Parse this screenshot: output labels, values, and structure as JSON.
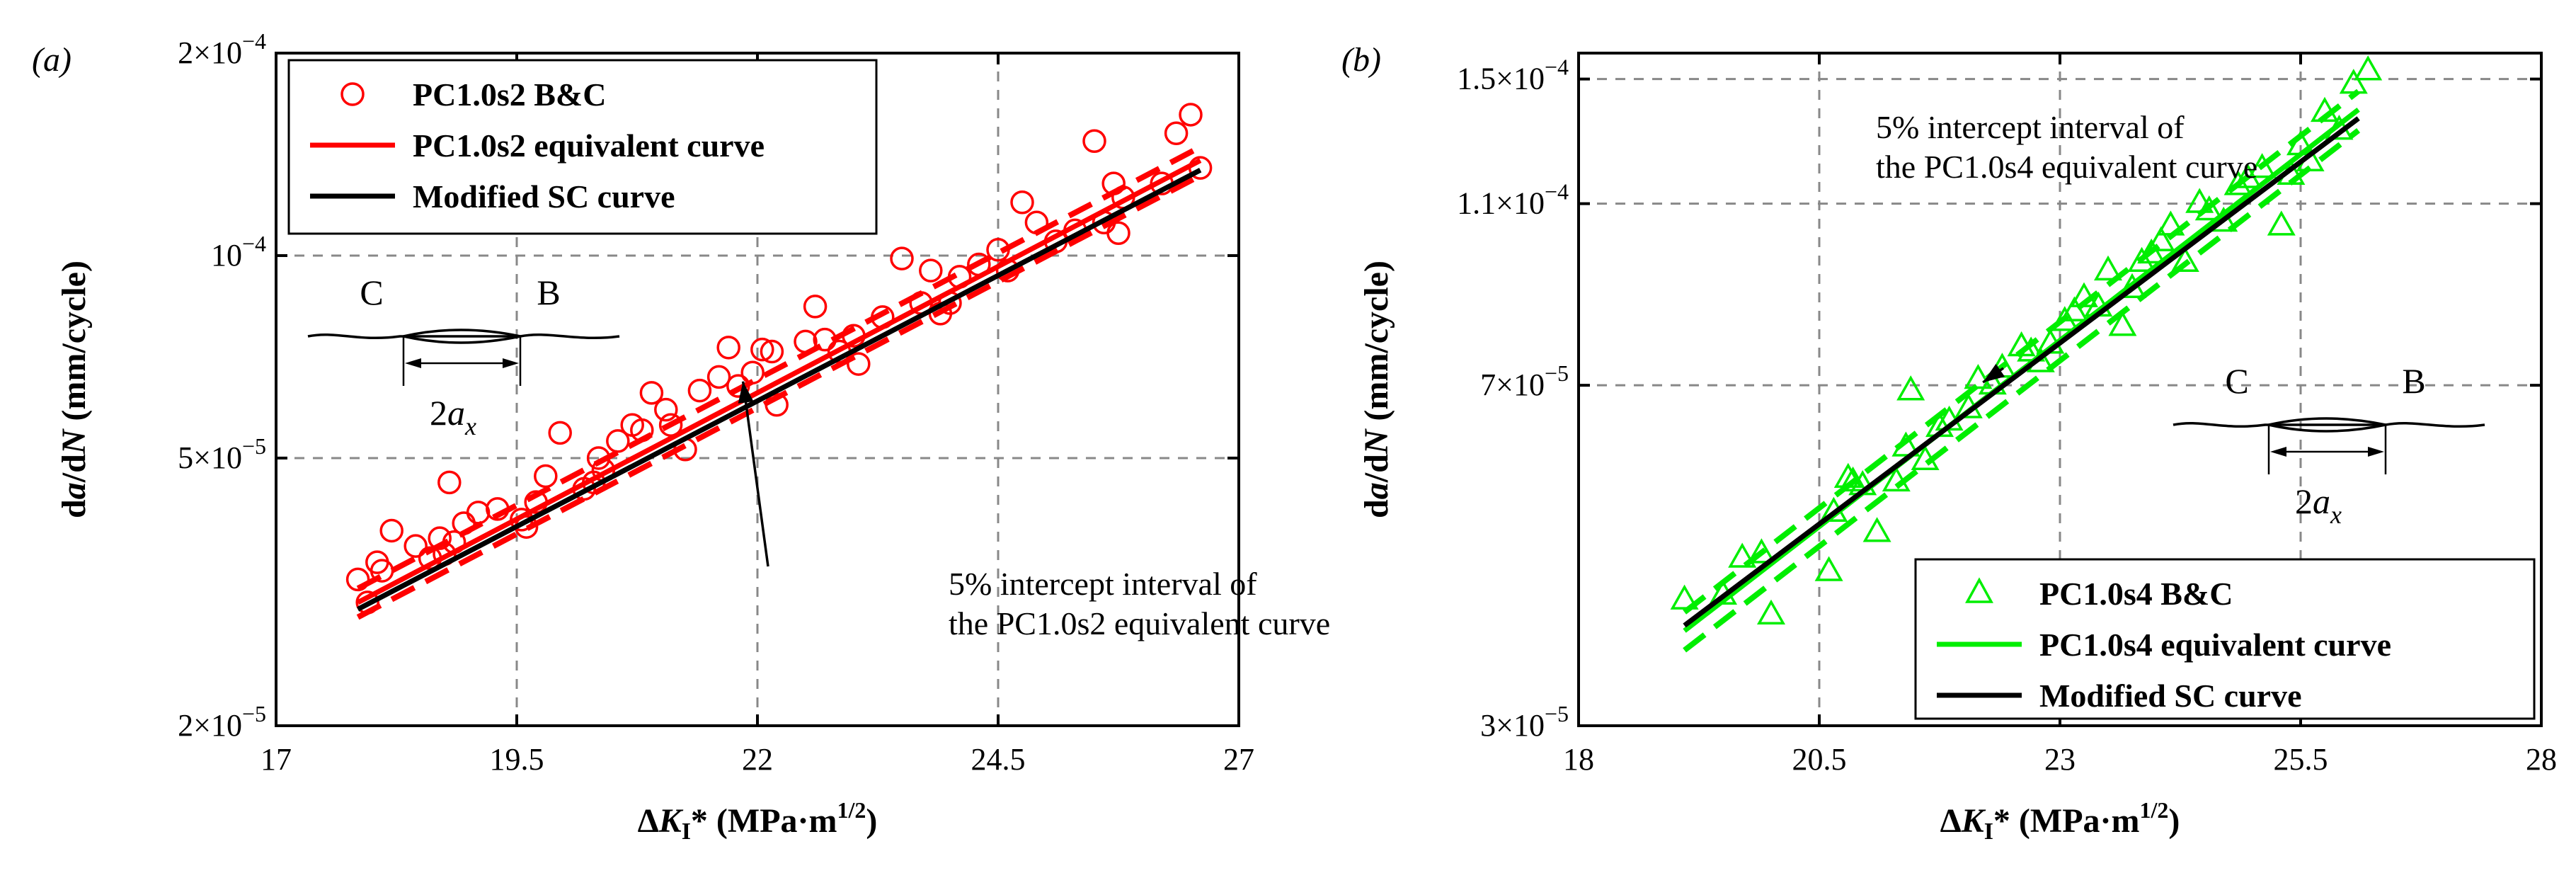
{
  "chart_data": [
    {
      "panel_label": "(a)",
      "type": "scatter",
      "xlabel": "ΔKI* (MPa·m1/2)",
      "ylabel": "da/dN (mm/cycle)",
      "xscale": "linear",
      "yscale": "log",
      "xlim": [
        17,
        27
      ],
      "ylim": [
        2e-05,
        0.0002
      ],
      "xticks": [
        17,
        19.5,
        22,
        24.5,
        27
      ],
      "xtick_labels": [
        "17",
        "19.5",
        "22",
        "24.5",
        "27"
      ],
      "yticks": [
        2e-05,
        5e-05,
        0.0001,
        0.0002
      ],
      "ytick_labels": [
        [
          "2×10",
          "−5"
        ],
        [
          "5×10",
          "−5"
        ],
        [
          "10",
          "−4"
        ],
        [
          "2×10",
          "−4"
        ]
      ],
      "grid": "dashed",
      "legend_position": "top-left",
      "legend": [
        {
          "label": "PC1.0s2 B&C",
          "kind": "marker-circle",
          "color": "#ff0000"
        },
        {
          "label": "PC1.0s2 equivalent curve",
          "kind": "line",
          "color": "#ff0000"
        },
        {
          "label": "Modified SC curve",
          "kind": "line",
          "color": "#000000"
        }
      ],
      "annotation": {
        "lines": [
          "5% intercept interval of",
          "the PC1.0s2 equivalent curve"
        ],
        "arrow_target": [
          21.85,
          6.5e-05
        ]
      },
      "inset": {
        "left": "C",
        "right": "B",
        "width_base": "2a",
        "width_sub": "x",
        "position": "middle-left"
      },
      "series": [
        {
          "name": "PC1.0s2 B&C",
          "kind": "scatter",
          "marker": "circle",
          "color": "#ff0000",
          "x": [
            17.85,
            17.95,
            18.05,
            18.1,
            18.2,
            18.45,
            18.6,
            18.7,
            18.75,
            18.8,
            18.85,
            18.95,
            19.1,
            19.3,
            19.55,
            19.6,
            19.7,
            19.8,
            19.95,
            20.2,
            20.3,
            20.35,
            20.4,
            20.55,
            20.7,
            20.8,
            20.9,
            21.05,
            21.1,
            21.25,
            21.4,
            21.6,
            21.7,
            21.8,
            21.95,
            22.05,
            22.15,
            22.2,
            22.5,
            22.6,
            22.7,
            22.85,
            23.0,
            23.05,
            23.3,
            23.5,
            23.7,
            23.8,
            23.9,
            24.0,
            24.1,
            24.3,
            24.5,
            24.6,
            24.75,
            24.9,
            25.1,
            25.3,
            25.5,
            25.6,
            25.7,
            25.75,
            25.8,
            26.2,
            26.35,
            26.5,
            26.6
          ],
          "y": [
            3.3e-05,
            3.05e-05,
            3.5e-05,
            3.4e-05,
            3.9e-05,
            3.7e-05,
            3.55e-05,
            3.8e-05,
            3.6e-05,
            4.6e-05,
            3.75e-05,
            4e-05,
            4.15e-05,
            4.2e-05,
            4.05e-05,
            3.95e-05,
            4.3e-05,
            4.7e-05,
            5.45e-05,
            4.5e-05,
            4.6e-05,
            5e-05,
            4.8e-05,
            5.3e-05,
            5.6e-05,
            5.5e-05,
            6.25e-05,
            5.9e-05,
            5.6e-05,
            5.15e-05,
            6.3e-05,
            6.6e-05,
            7.3e-05,
            6.4e-05,
            6.7e-05,
            7.25e-05,
            7.2e-05,
            6e-05,
            7.45e-05,
            8.4e-05,
            7.5e-05,
            7.2e-05,
            7.6e-05,
            6.9e-05,
            8.1e-05,
            9.9e-05,
            8.5e-05,
            9.5e-05,
            8.2e-05,
            8.5e-05,
            9.3e-05,
            9.7e-05,
            0.000102,
            9.5e-05,
            0.00012,
            0.000112,
            0.000105,
            0.000109,
            0.000148,
            0.000112,
            0.000128,
            0.000108,
            0.000122,
            0.000128,
            0.000152,
            0.000162,
            0.000135
          ]
        },
        {
          "name": "PC1.0s2 equivalent curve",
          "kind": "line",
          "color": "#ff0000",
          "x": [
            17.85,
            26.6
          ],
          "y": [
            3.05e-05,
            0.0001385
          ]
        },
        {
          "name": "5% intercept interval (upper)",
          "kind": "line",
          "style": "dashed",
          "color": "#ff0000",
          "x": [
            17.85,
            26.6
          ],
          "y": [
            3.2e-05,
            0.000145
          ]
        },
        {
          "name": "5% intercept interval (lower)",
          "kind": "line",
          "style": "dashed",
          "color": "#ff0000",
          "x": [
            17.85,
            26.6
          ],
          "y": [
            2.9e-05,
            0.0001315
          ]
        },
        {
          "name": "Modified SC curve",
          "kind": "line",
          "color": "#000000",
          "x": [
            17.85,
            26.6
          ],
          "y": [
            2.98e-05,
            0.000134
          ]
        }
      ]
    },
    {
      "panel_label": "(b)",
      "type": "scatter",
      "xlabel": "ΔKI* (MPa·m1/2)",
      "ylabel": "da/dN (mm/cycle)",
      "xscale": "linear",
      "yscale": "log",
      "xlim": [
        18,
        28
      ],
      "ylim": [
        3e-05,
        0.00016
      ],
      "xticks": [
        18,
        20.5,
        23,
        25.5,
        28
      ],
      "xtick_labels": [
        "18",
        "20.5",
        "23",
        "25.5",
        "28"
      ],
      "yticks": [
        3e-05,
        7e-05,
        0.00011,
        0.00015
      ],
      "ytick_labels": [
        [
          "3×10",
          "−5"
        ],
        [
          "7×10",
          "−5"
        ],
        [
          "1.1×10",
          "−4"
        ],
        [
          "1.5×10",
          "−4"
        ]
      ],
      "grid": "dashed",
      "legend_position": "bottom-right",
      "legend": [
        {
          "label": "PC1.0s4 B&C",
          "kind": "marker-triangle",
          "color": "#00ee00"
        },
        {
          "label": "PC1.0s4 equivalent curve",
          "kind": "line",
          "color": "#00ee00"
        },
        {
          "label": "Modified SC curve",
          "kind": "line",
          "color": "#000000"
        }
      ],
      "annotation": {
        "lines": [
          "5% intercept interval of",
          "the PC1.0s4 equivalent curve"
        ],
        "arrow_target": [
          22.2,
          7.05e-05
        ]
      },
      "inset": {
        "left": "C",
        "right": "B",
        "width_base": "2a",
        "width_sub": "x",
        "position": "right"
      },
      "series": [
        {
          "name": "PC1.0s4 B&C",
          "kind": "scatter",
          "marker": "triangle",
          "color": "#00ee00",
          "x": [
            19.1,
            19.5,
            19.7,
            19.9,
            20.0,
            20.6,
            20.65,
            20.8,
            20.85,
            20.95,
            21.1,
            21.3,
            21.4,
            21.45,
            21.6,
            21.75,
            21.85,
            22.05,
            22.15,
            22.3,
            22.4,
            22.6,
            22.7,
            22.8,
            22.9,
            23.05,
            23.15,
            23.25,
            23.4,
            23.5,
            23.65,
            23.75,
            23.85,
            23.95,
            24.05,
            24.15,
            24.3,
            24.45,
            24.55,
            24.7,
            24.85,
            24.95,
            25.1,
            25.3,
            25.4,
            25.5,
            25.6,
            25.75,
            25.9,
            26.05,
            26.2
          ],
          "y": [
            4.1e-05,
            4.15e-05,
            4.55e-05,
            4.6e-05,
            3.95e-05,
            4.4e-05,
            5.1e-05,
            5.55e-05,
            5.5e-05,
            5.45e-05,
            4.85e-05,
            5.5e-05,
            6e-05,
            6.9e-05,
            5.8e-05,
            6.3e-05,
            6.4e-05,
            6.6e-05,
            7.1e-05,
            7e-05,
            7.3e-05,
            7.7e-05,
            7.6e-05,
            7.4e-05,
            7.75e-05,
            8.2e-05,
            8.4e-05,
            8.7e-05,
            8.5e-05,
            9.3e-05,
            8.1e-05,
            8.9e-05,
            9.5e-05,
            9.7e-05,
            0.0001,
            0.000104,
            9.5e-05,
            0.00011,
            0.000108,
            0.000105,
            0.000115,
            0.000117,
            0.00012,
            0.000104,
            0.000118,
            0.000127,
            0.000122,
            0.000138,
            0.000132,
            0.000148,
            0.000153
          ]
        },
        {
          "name": "PC1.0s4 equivalent curve",
          "kind": "line",
          "color": "#00ee00",
          "x": [
            19.1,
            26.1
          ],
          "y": [
            3.8e-05,
            0.000139
          ]
        },
        {
          "name": "5% intercept interval (upper)",
          "kind": "line",
          "style": "dashed",
          "color": "#00ee00",
          "x": [
            19.1,
            26.1
          ],
          "y": [
            3.98e-05,
            0.0001455
          ]
        },
        {
          "name": "5% intercept interval (lower)",
          "kind": "line",
          "style": "dashed",
          "color": "#00ee00",
          "x": [
            19.1,
            26.1
          ],
          "y": [
            3.62e-05,
            0.000132
          ]
        },
        {
          "name": "Modified SC curve",
          "kind": "line",
          "color": "#000000",
          "x": [
            19.1,
            26.1
          ],
          "y": [
            3.85e-05,
            0.000136
          ]
        }
      ]
    }
  ]
}
